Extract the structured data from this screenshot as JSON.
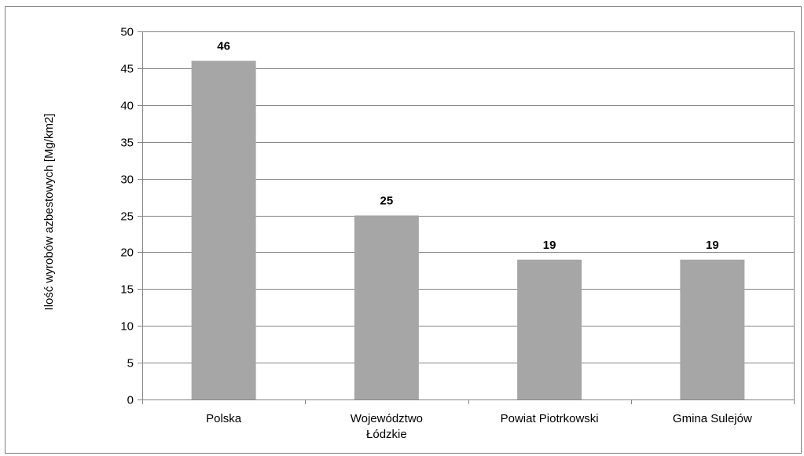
{
  "chart_data": {
    "type": "bar",
    "categories": [
      [
        "Polska"
      ],
      [
        "Województwo",
        "Łódzkie"
      ],
      [
        "Powiat Piotrkowski"
      ],
      [
        "Gmina Sulejów"
      ]
    ],
    "values": [
      46,
      25,
      19,
      19
    ],
    "data_labels": [
      "46",
      "25",
      "19",
      "19"
    ],
    "ylabel": "Ilość wyrobów azbestowych  [Mg/km2]",
    "xlabel": "",
    "ylim": [
      0,
      50
    ],
    "yticks": [
      0,
      5,
      10,
      15,
      20,
      25,
      30,
      35,
      40,
      45,
      50
    ],
    "grid": true,
    "legend": "none",
    "colors": {
      "bar": "#a6a6a6",
      "grid": "#868686",
      "axis": "#868686"
    }
  }
}
